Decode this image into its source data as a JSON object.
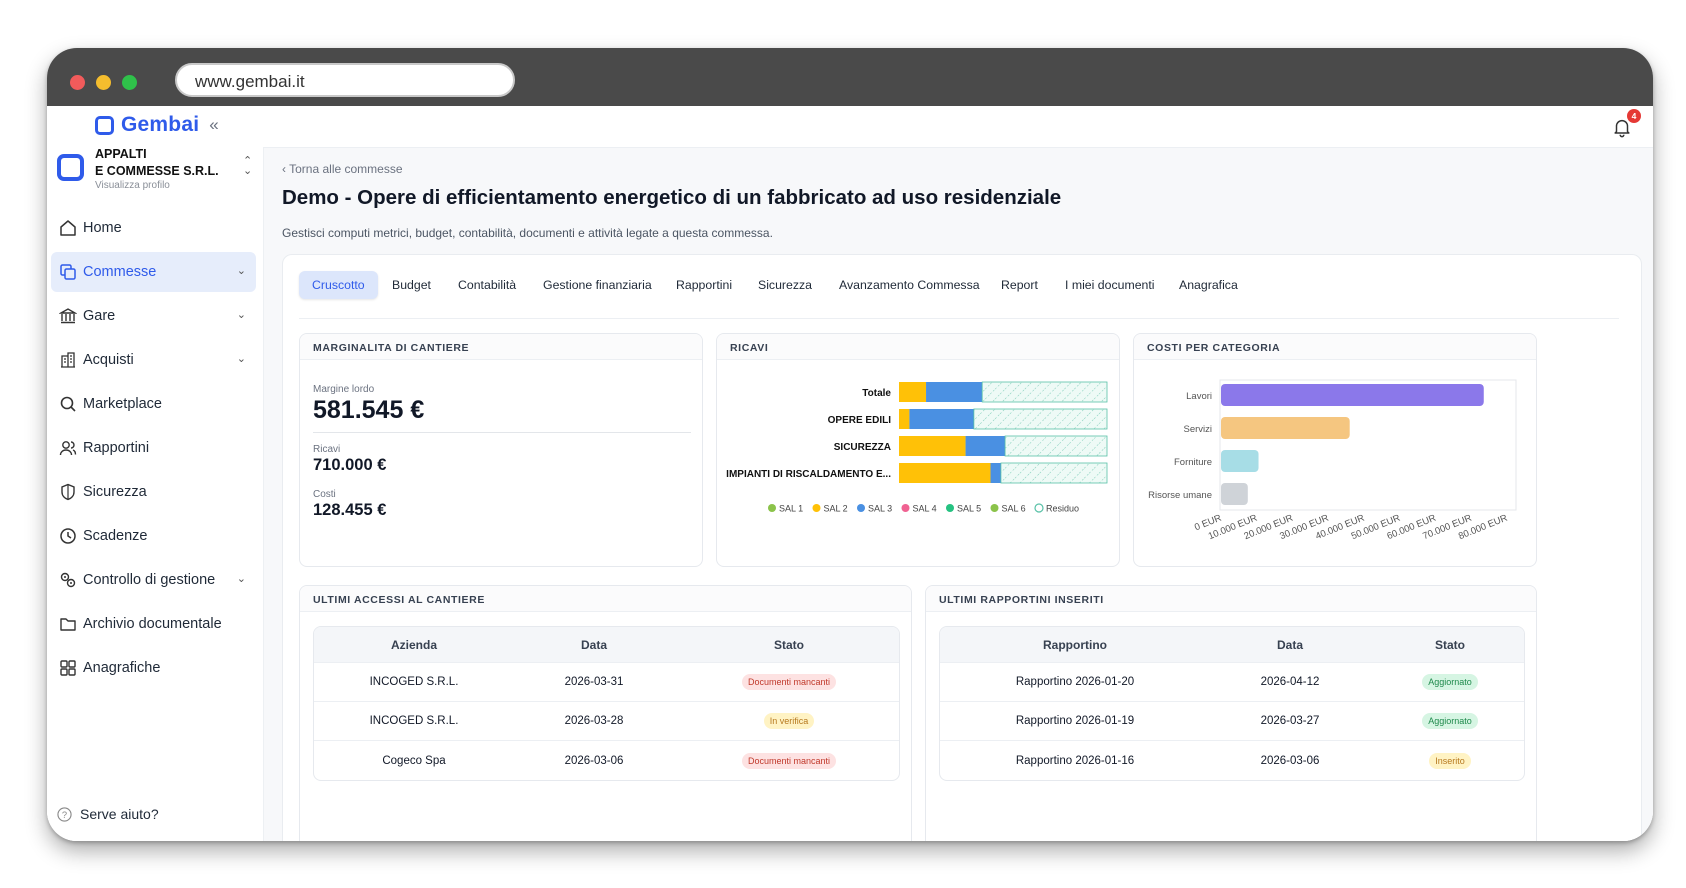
{
  "browser": {
    "url": "www.gembai.it"
  },
  "brand": {
    "name": "Gembai",
    "collapse": "«",
    "color": "#2f5bea"
  },
  "company": {
    "name_line1": "APPALTI",
    "name_line2": "E COMMESSE S.R.L.",
    "sub": "Visualizza profilo"
  },
  "nav": [
    {
      "label": "Home",
      "icon": "home-icon"
    },
    {
      "label": "Commesse",
      "icon": "copy-icon",
      "active": true,
      "chevron": true
    },
    {
      "label": "Gare",
      "icon": "bank-icon",
      "chevron": true
    },
    {
      "label": "Acquisti",
      "icon": "building-icon",
      "chevron": true
    },
    {
      "label": "Marketplace",
      "icon": "search-icon"
    },
    {
      "label": "Rapportini",
      "icon": "users-icon"
    },
    {
      "label": "Sicurezza",
      "icon": "shield-icon"
    },
    {
      "label": "Scadenze",
      "icon": "clock-icon"
    },
    {
      "label": "Controllo di gestione",
      "icon": "cogs-icon",
      "chevron": true
    },
    {
      "label": "Archivio documentale",
      "icon": "folder-icon"
    },
    {
      "label": "Anagrafiche",
      "icon": "grid-icon"
    }
  ],
  "help": "Serve aiuto?",
  "notifications": {
    "count": "4"
  },
  "page": {
    "back": "Torna alle commesse",
    "title": "Demo - Opere di efficientamento energetico di un fabbricato ad uso residenziale",
    "subtitle": "Gestisci computi metrici, budget, contabilità, documenti e attività legate a questa commessa."
  },
  "tabs": [
    "Cruscotto",
    "Budget",
    "Contabilità",
    "Gestione finanziaria",
    "Rapportini",
    "Sicurezza",
    "Avanzamento Commessa",
    "Report",
    "I miei documenti",
    "Anagrafica"
  ],
  "marginalita": {
    "title": "MARGINALITA DI CANTIERE",
    "margine_label": "Margine lordo",
    "margine_value": "581.545 €",
    "ricavi_label": "Ricavi",
    "ricavi_value": "710.000 €",
    "costi_label": "Costi",
    "costi_value": "128.455 €"
  },
  "ricavi": {
    "title": "RICAVI"
  },
  "costi": {
    "title": "COSTI PER CATEGORIA"
  },
  "accessi": {
    "title": "ULTIMI ACCESSI AL CANTIERE",
    "headers": [
      "Azienda",
      "Data",
      "Stato"
    ],
    "rows": [
      {
        "azienda": "INCOGED S.R.L.",
        "data": "2026-03-31",
        "stato": "Documenti mancanti",
        "tone": "red"
      },
      {
        "azienda": "INCOGED S.R.L.",
        "data": "2026-03-28",
        "stato": "In verifica",
        "tone": "yel"
      },
      {
        "azienda": "Cogeco Spa",
        "data": "2026-03-06",
        "stato": "Documenti mancanti",
        "tone": "red"
      }
    ]
  },
  "rapportini": {
    "title": "ULTIMI RAPPORTINI INSERITI",
    "headers": [
      "Rapportino",
      "Data",
      "Stato"
    ],
    "rows": [
      {
        "rapportino": "Rapportino 2026-01-20",
        "data": "2026-04-12",
        "stato": "Aggiornato",
        "tone": "grn"
      },
      {
        "rapportino": "Rapportino 2026-01-19",
        "data": "2026-03-27",
        "stato": "Aggiornato",
        "tone": "grn"
      },
      {
        "rapportino": "Rapportino 2026-01-16",
        "data": "2026-03-06",
        "stato": "Inserito",
        "tone": "yel"
      }
    ]
  },
  "chart_data": [
    {
      "type": "bar",
      "orientation": "horizontal",
      "stacked": true,
      "categories": [
        "Totale",
        "OPERE EDILI",
        "SICUREZZA",
        "IMPIANTI DI RISCALDAMENTO E..."
      ],
      "series": [
        {
          "name": "SAL 1",
          "color": "#8bc34a",
          "values": [
            0,
            0,
            0,
            0
          ]
        },
        {
          "name": "SAL 2",
          "color": "#ffc107",
          "values": [
            13,
            5,
            32,
            44
          ]
        },
        {
          "name": "SAL 3",
          "color": "#4a90e2",
          "values": [
            27,
            31,
            19,
            5
          ]
        },
        {
          "name": "SAL 4",
          "color": "#f06292",
          "values": [
            0,
            0,
            0,
            0
          ]
        },
        {
          "name": "SAL 5",
          "color": "#26c281",
          "values": [
            0,
            0,
            0,
            0
          ]
        },
        {
          "name": "SAL 6",
          "color": "#8bc34a",
          "values": [
            0,
            0,
            0,
            0
          ]
        },
        {
          "name": "Residuo",
          "color": "#58c1a7",
          "values": [
            60,
            64,
            49,
            51
          ]
        }
      ],
      "value_unit": "% of total",
      "legend_position": "bottom",
      "grid": false
    },
    {
      "type": "bar",
      "orientation": "horizontal",
      "categories": [
        "Lavori",
        "Servizi",
        "Forniture",
        "Risorse umane"
      ],
      "values": [
        73500,
        36000,
        10500,
        7500
      ],
      "colors": [
        "#8b78ea",
        "#f5c680",
        "#a7dde6",
        "#cfd3d8"
      ],
      "tick_labels": [
        "0 EUR",
        "10.000 EUR",
        "20.000 EUR",
        "30.000 EUR",
        "40.000 EUR",
        "50.000 EUR",
        "60.000 EUR",
        "70.000 EUR",
        "80.000 EUR"
      ],
      "xlim": [
        0,
        80000
      ],
      "grid": false
    }
  ]
}
